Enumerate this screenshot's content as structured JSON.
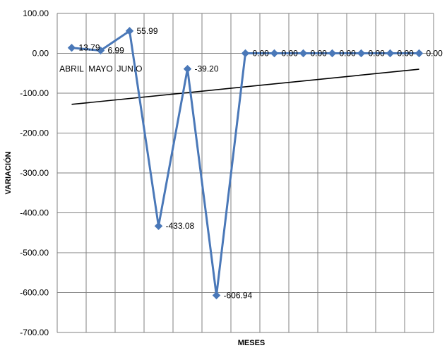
{
  "chart_data": {
    "type": "line",
    "title": "",
    "xlabel": "MESES",
    "ylabel": "VARIACIÓN",
    "ylim": [
      -700,
      100
    ],
    "ytick_step": 100,
    "grid": true,
    "legend": "none",
    "category_labels": [
      "ABRIL",
      "MAYO",
      "JUNIO",
      "",
      "",
      "",
      "",
      "",
      "",
      "",
      "",
      "",
      ""
    ],
    "series": [
      {
        "values": [
          13.79,
          6.99,
          55.99,
          -433.08,
          -39.2,
          -606.94,
          0.0,
          0.0,
          0.0,
          0.0,
          0.0,
          0.0,
          0.0
        ],
        "data_labels": [
          "13.79",
          "6.99",
          "55.99",
          "-433.08",
          "-39.20",
          "-606.94",
          "0.00",
          "0.00",
          "0.00",
          "0.00",
          "0.00",
          "0.00",
          "0.00"
        ],
        "color": "#4a78b8",
        "marker": "diamond"
      }
    ],
    "trendline": {
      "type": "linear",
      "color": "#000000",
      "start_value": -128,
      "end_value": -40
    }
  }
}
